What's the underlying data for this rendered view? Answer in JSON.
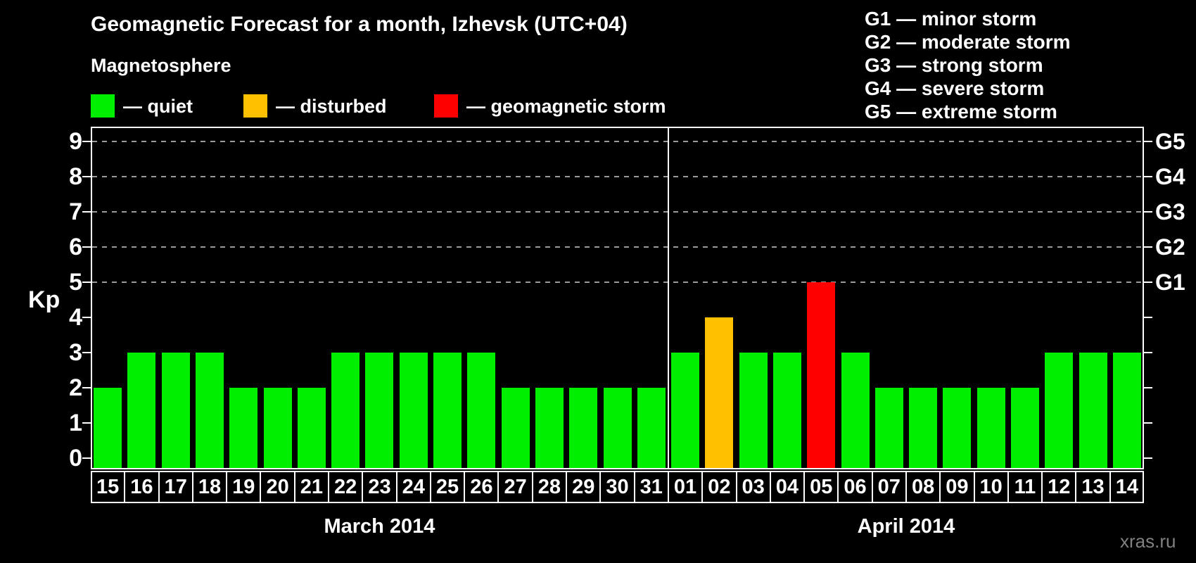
{
  "title": "Geomagnetic Forecast for a month, Izhevsk (UTC+04)",
  "subtitle": "Magnetosphere",
  "watermark": "xras.ru",
  "legend": [
    {
      "name": "quiet",
      "label": "— quiet",
      "color": "#00ee00"
    },
    {
      "name": "disturbed",
      "label": "— disturbed",
      "color": "#ffc000"
    },
    {
      "name": "storm",
      "label": "— geomagnetic storm",
      "color": "#ff0000"
    }
  ],
  "storm_scale": [
    "G1 — minor storm",
    "G2 — moderate storm",
    "G3 — strong storm",
    "G4 — severe storm",
    "G5 — extreme storm"
  ],
  "chart_data": {
    "type": "bar",
    "title": "Geomagnetic Forecast for a month, Izhevsk (UTC+04)",
    "ylabel": "Kp",
    "ylim": [
      0,
      9
    ],
    "yticks": [
      0,
      1,
      2,
      3,
      4,
      5,
      6,
      7,
      8,
      9
    ],
    "grid_levels": [
      5,
      6,
      7,
      8,
      9
    ],
    "grid_style": "dashed",
    "legend_position": "top-left",
    "right_axis_labels": [
      {
        "kp": 5,
        "label": "G1"
      },
      {
        "kp": 6,
        "label": "G2"
      },
      {
        "kp": 7,
        "label": "G3"
      },
      {
        "kp": 8,
        "label": "G4"
      },
      {
        "kp": 9,
        "label": "G5"
      }
    ],
    "bar_colors": {
      "quiet": "#00ee00",
      "disturbed": "#ffc000",
      "storm": "#ff0000"
    },
    "months": [
      {
        "label": "March 2014",
        "days": [
          {
            "date": "15",
            "kp": 2,
            "level": "quiet"
          },
          {
            "date": "16",
            "kp": 3,
            "level": "quiet"
          },
          {
            "date": "17",
            "kp": 3,
            "level": "quiet"
          },
          {
            "date": "18",
            "kp": 3,
            "level": "quiet"
          },
          {
            "date": "19",
            "kp": 2,
            "level": "quiet"
          },
          {
            "date": "20",
            "kp": 2,
            "level": "quiet"
          },
          {
            "date": "21",
            "kp": 2,
            "level": "quiet"
          },
          {
            "date": "22",
            "kp": 3,
            "level": "quiet"
          },
          {
            "date": "23",
            "kp": 3,
            "level": "quiet"
          },
          {
            "date": "24",
            "kp": 3,
            "level": "quiet"
          },
          {
            "date": "25",
            "kp": 3,
            "level": "quiet"
          },
          {
            "date": "26",
            "kp": 3,
            "level": "quiet"
          },
          {
            "date": "27",
            "kp": 2,
            "level": "quiet"
          },
          {
            "date": "28",
            "kp": 2,
            "level": "quiet"
          },
          {
            "date": "29",
            "kp": 2,
            "level": "quiet"
          },
          {
            "date": "30",
            "kp": 2,
            "level": "quiet"
          },
          {
            "date": "31",
            "kp": 2,
            "level": "quiet"
          }
        ]
      },
      {
        "label": "April 2014",
        "days": [
          {
            "date": "01",
            "kp": 3,
            "level": "quiet"
          },
          {
            "date": "02",
            "kp": 4,
            "level": "disturbed"
          },
          {
            "date": "03",
            "kp": 3,
            "level": "quiet"
          },
          {
            "date": "04",
            "kp": 3,
            "level": "quiet"
          },
          {
            "date": "05",
            "kp": 5,
            "level": "storm"
          },
          {
            "date": "06",
            "kp": 3,
            "level": "quiet"
          },
          {
            "date": "07",
            "kp": 2,
            "level": "quiet"
          },
          {
            "date": "08",
            "kp": 2,
            "level": "quiet"
          },
          {
            "date": "09",
            "kp": 2,
            "level": "quiet"
          },
          {
            "date": "10",
            "kp": 2,
            "level": "quiet"
          },
          {
            "date": "11",
            "kp": 2,
            "level": "quiet"
          },
          {
            "date": "12",
            "kp": 3,
            "level": "quiet"
          },
          {
            "date": "13",
            "kp": 3,
            "level": "quiet"
          },
          {
            "date": "14",
            "kp": 3,
            "level": "quiet"
          }
        ]
      }
    ]
  }
}
